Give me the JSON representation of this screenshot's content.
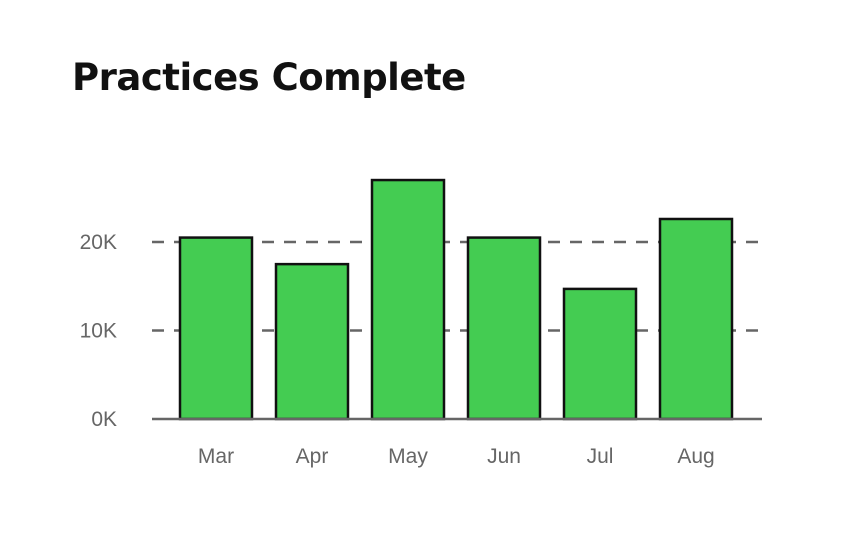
{
  "chart_data": {
    "type": "bar",
    "title": "Practices Complete",
    "categories": [
      "Mar",
      "Apr",
      "May",
      "Jun",
      "Jul",
      "Aug"
    ],
    "values": [
      20500,
      17500,
      27000,
      20500,
      14700,
      22600
    ],
    "ylim": [
      0,
      30000
    ],
    "yticks": [
      {
        "value": 0,
        "label": "0K"
      },
      {
        "value": 10000,
        "label": "10K"
      },
      {
        "value": 20000,
        "label": "20K"
      }
    ],
    "xlabel": "",
    "ylabel": "",
    "grid": "horizontal dashed",
    "legend": "none",
    "bar_color": "#44cc52",
    "bar_edge_color": "#111111"
  }
}
